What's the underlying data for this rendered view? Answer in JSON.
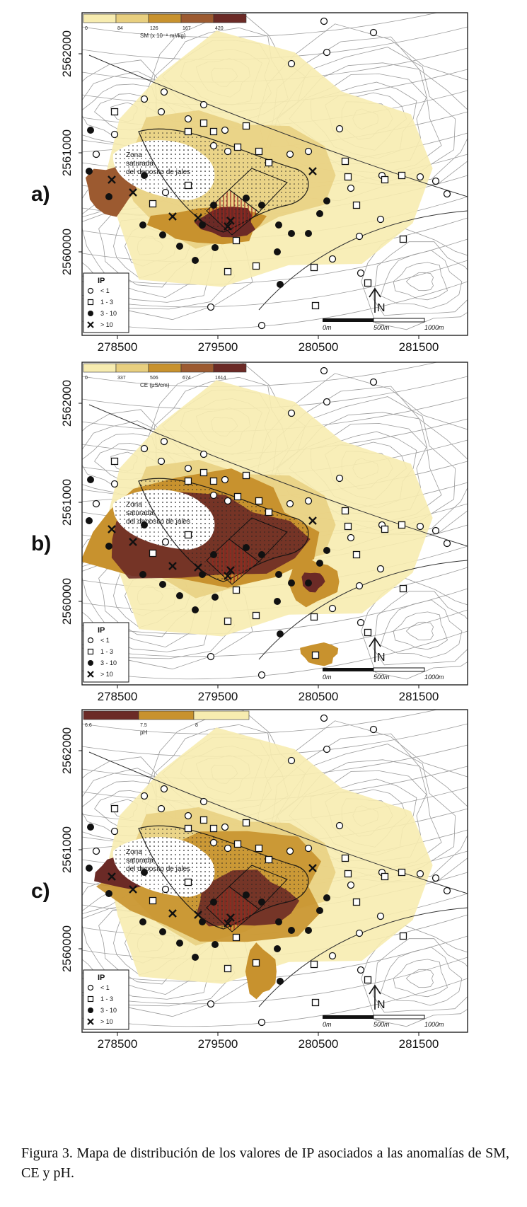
{
  "figure": {
    "caption": "Figura 3. Mapa de distribución de los valores de IP asociados a las anomalías de SM, CE y pH."
  },
  "axes": {
    "x_ticks": [
      "278500",
      "279500",
      "280500",
      "281500"
    ],
    "y_ticks": [
      "2562000",
      "2561000",
      "2560000"
    ]
  },
  "map_labels": {
    "zone_line1": "Zona",
    "zone_line2": "saturada",
    "zone_line3": "del deposito de jales"
  },
  "legend": {
    "title": "IP",
    "items": [
      {
        "symbol": "circle",
        "label": "< 1"
      },
      {
        "symbol": "square",
        "label": "1 - 3"
      },
      {
        "symbol": "dot",
        "label": "3 - 10"
      },
      {
        "symbol": "cross",
        "label": "> 10"
      }
    ]
  },
  "scale_bar": {
    "labels": [
      "0m",
      "500m",
      "1000m"
    ]
  },
  "north_arrow": {
    "label": "N"
  },
  "colors": {
    "class1": "#f7ecb0",
    "class2": "#e8cf7f",
    "class3": "#c8922e",
    "class4": "#9c5a30",
    "class5": "#6b2a26",
    "contour": "#8a8a8a",
    "frame": "#222222"
  },
  "panels": [
    {
      "id": "a",
      "label": "a)",
      "colorbar": {
        "title": "SM",
        "unit": "(x 10⁻⁸ m³/kg)",
        "ticks": [
          "0",
          "84",
          "126",
          "167",
          "420"
        ],
        "colors": [
          "class1",
          "class2",
          "class3",
          "class4",
          "class5"
        ]
      }
    },
    {
      "id": "b",
      "label": "b)",
      "colorbar": {
        "title": "CE",
        "unit": "(µS/cm)",
        "ticks": [
          "0",
          "337",
          "506",
          "674",
          "1614"
        ],
        "colors": [
          "class1",
          "class2",
          "class3",
          "class4",
          "class5"
        ]
      }
    },
    {
      "id": "c",
      "label": "c)",
      "colorbar": {
        "title": "pH",
        "unit": "",
        "ticks": [
          "6.6",
          "7.5",
          "8"
        ],
        "colors": [
          "class5",
          "class3",
          "class1"
        ]
      }
    }
  ]
}
